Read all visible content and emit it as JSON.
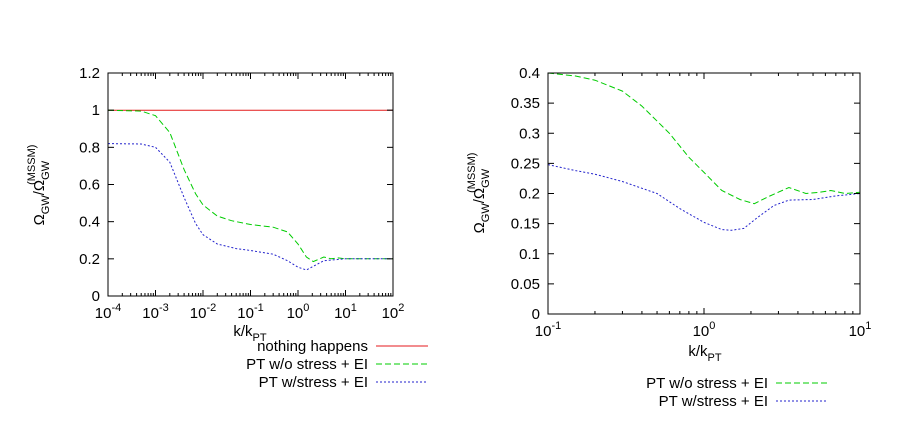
{
  "chart_data": [
    {
      "type": "line",
      "xscale": "log",
      "xlim": [
        0.0001,
        100
      ],
      "ylim": [
        0,
        1.2
      ],
      "xlabel": {
        "base": "k/k",
        "sub": "PT"
      },
      "ylabel": {
        "base": "Ω",
        "sub1": "GW",
        "mid": "/Ω",
        "sub2": "GW",
        "sup2": "(MSSM)"
      },
      "xticks": [
        {
          "value": 0.0001,
          "base": "10",
          "exp": "-4"
        },
        {
          "value": 0.001,
          "base": "10",
          "exp": "-3"
        },
        {
          "value": 0.01,
          "base": "10",
          "exp": "-2"
        },
        {
          "value": 0.1,
          "base": "10",
          "exp": "-1"
        },
        {
          "value": 1,
          "base": "10",
          "exp": "0"
        },
        {
          "value": 10,
          "base": "10",
          "exp": "1"
        },
        {
          "value": 100,
          "base": "10",
          "exp": "2"
        }
      ],
      "yticks": [
        {
          "value": 0,
          "label": "0"
        },
        {
          "value": 0.2,
          "label": "0.2"
        },
        {
          "value": 0.4,
          "label": "0.4"
        },
        {
          "value": 0.6,
          "label": "0.6"
        },
        {
          "value": 0.8,
          "label": "0.8"
        },
        {
          "value": 1,
          "label": "1"
        },
        {
          "value": 1.2,
          "label": "1.2"
        }
      ],
      "legend_position": "bottom",
      "series": [
        {
          "name": "nothing happens",
          "color": "#e41a1c",
          "dash": "solid",
          "points": [
            [
              0.0001,
              1.0
            ],
            [
              100,
              1.0
            ]
          ]
        },
        {
          "name": "PT w/o stress + EI",
          "color": "#00cc00",
          "dash": "dashed",
          "points": [
            [
              0.0001,
              1.0
            ],
            [
              0.0005,
              0.995
            ],
            [
              0.001,
              0.97
            ],
            [
              0.002,
              0.88
            ],
            [
              0.004,
              0.68
            ],
            [
              0.007,
              0.55
            ],
            [
              0.01,
              0.49
            ],
            [
              0.02,
              0.43
            ],
            [
              0.04,
              0.405
            ],
            [
              0.1,
              0.385
            ],
            [
              0.3,
              0.37
            ],
            [
              0.6,
              0.345
            ],
            [
              1.0,
              0.28
            ],
            [
              1.5,
              0.21
            ],
            [
              2.1,
              0.185
            ],
            [
              3.5,
              0.21
            ],
            [
              5.0,
              0.2
            ],
            [
              7.0,
              0.205
            ],
            [
              10,
              0.2
            ],
            [
              100,
              0.2
            ]
          ]
        },
        {
          "name": "PT w/stress + EI",
          "color": "#2222cc",
          "dash": "dotted",
          "points": [
            [
              0.0001,
              0.82
            ],
            [
              0.0005,
              0.818
            ],
            [
              0.001,
              0.8
            ],
            [
              0.002,
              0.72
            ],
            [
              0.004,
              0.53
            ],
            [
              0.007,
              0.39
            ],
            [
              0.01,
              0.33
            ],
            [
              0.02,
              0.28
            ],
            [
              0.05,
              0.255
            ],
            [
              0.1,
              0.245
            ],
            [
              0.3,
              0.225
            ],
            [
              0.6,
              0.19
            ],
            [
              1.0,
              0.155
            ],
            [
              1.5,
              0.14
            ],
            [
              2.1,
              0.16
            ],
            [
              3.5,
              0.19
            ],
            [
              10,
              0.2
            ],
            [
              100,
              0.2
            ]
          ]
        }
      ]
    },
    {
      "type": "line",
      "xscale": "log",
      "xlim": [
        0.1,
        10
      ],
      "ylim": [
        0,
        0.4
      ],
      "xlabel": {
        "base": "k/k",
        "sub": "PT"
      },
      "ylabel": {
        "base": "Ω",
        "sub1": "GW",
        "mid": "/Ω",
        "sub2": "GW",
        "sup2": "(MSSM)"
      },
      "xticks": [
        {
          "value": 0.1,
          "base": "10",
          "exp": "-1"
        },
        {
          "value": 1,
          "base": "10",
          "exp": "0"
        },
        {
          "value": 10,
          "base": "10",
          "exp": "1"
        }
      ],
      "yticks": [
        {
          "value": 0,
          "label": "0"
        },
        {
          "value": 0.05,
          "label": "0.05"
        },
        {
          "value": 0.1,
          "label": "0.1"
        },
        {
          "value": 0.15,
          "label": "0.15"
        },
        {
          "value": 0.2,
          "label": "0.2"
        },
        {
          "value": 0.25,
          "label": "0.25"
        },
        {
          "value": 0.3,
          "label": "0.3"
        },
        {
          "value": 0.35,
          "label": "0.35"
        },
        {
          "value": 0.4,
          "label": "0.4"
        }
      ],
      "legend_position": "bottom",
      "series": [
        {
          "name": "PT w/o stress + EI",
          "color": "#00cc00",
          "dash": "dashed",
          "points": [
            [
              0.1,
              0.4
            ],
            [
              0.15,
              0.395
            ],
            [
              0.2,
              0.388
            ],
            [
              0.3,
              0.37
            ],
            [
              0.4,
              0.345
            ],
            [
              0.6,
              0.3
            ],
            [
              0.8,
              0.26
            ],
            [
              1.0,
              0.235
            ],
            [
              1.3,
              0.205
            ],
            [
              1.7,
              0.19
            ],
            [
              2.1,
              0.183
            ],
            [
              2.6,
              0.195
            ],
            [
              3.5,
              0.21
            ],
            [
              4.5,
              0.2
            ],
            [
              5.5,
              0.202
            ],
            [
              6.5,
              0.205
            ],
            [
              8.0,
              0.2
            ],
            [
              10,
              0.202
            ]
          ]
        },
        {
          "name": "PT w/stress + EI",
          "color": "#2222cc",
          "dash": "dotted",
          "points": [
            [
              0.1,
              0.248
            ],
            [
              0.15,
              0.238
            ],
            [
              0.2,
              0.232
            ],
            [
              0.3,
              0.22
            ],
            [
              0.5,
              0.2
            ],
            [
              0.7,
              0.175
            ],
            [
              1.0,
              0.152
            ],
            [
              1.3,
              0.14
            ],
            [
              1.5,
              0.139
            ],
            [
              1.8,
              0.142
            ],
            [
              2.2,
              0.16
            ],
            [
              2.8,
              0.18
            ],
            [
              3.5,
              0.189
            ],
            [
              5.0,
              0.19
            ],
            [
              7.0,
              0.196
            ],
            [
              10,
              0.2
            ]
          ]
        }
      ]
    }
  ]
}
